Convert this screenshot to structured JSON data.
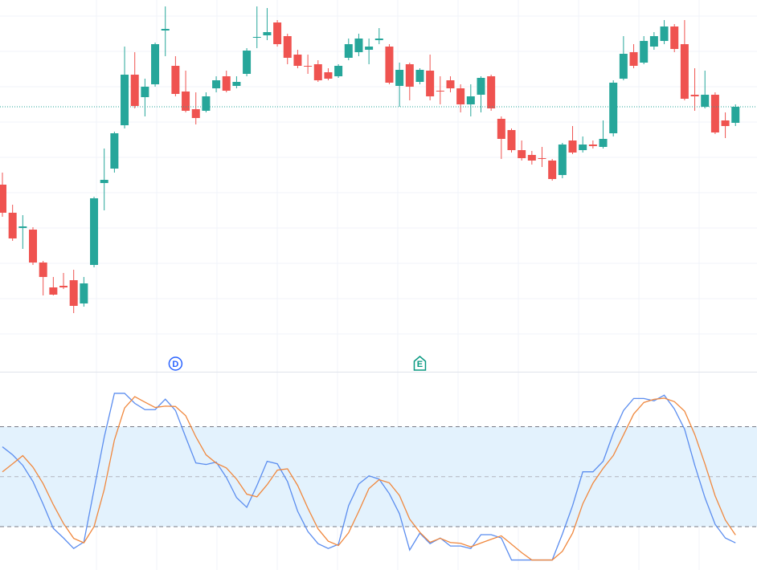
{
  "chart_data": [
    {
      "type": "candlestick",
      "up_color": "#26a69a",
      "down_color": "#ef5350",
      "ylim": [
        0,
        460
      ],
      "last_price_line": true,
      "ohlc": [
        [
          230,
          245,
          190,
          195
        ],
        [
          195,
          205,
          160,
          163
        ],
        [
          176,
          192,
          150,
          178
        ],
        [
          174,
          177,
          130,
          133
        ],
        [
          133,
          135,
          92,
          115
        ],
        [
          102,
          115,
          92,
          93
        ],
        [
          104,
          120,
          100,
          102
        ],
        [
          111,
          124,
          70,
          79
        ],
        [
          82,
          115,
          78,
          107
        ],
        [
          130,
          215,
          127,
          213
        ],
        [
          232,
          275,
          198,
          236
        ],
        [
          250,
          296,
          245,
          294
        ],
        [
          304,
          402,
          300,
          367
        ],
        [
          367,
          395,
          325,
          328
        ],
        [
          339,
          362,
          315,
          352
        ],
        [
          355,
          407,
          352,
          405
        ],
        [
          422,
          452,
          390,
          424
        ],
        [
          378,
          390,
          340,
          343
        ],
        [
          346,
          372,
          320,
          322
        ],
        [
          324,
          345,
          305,
          313
        ],
        [
          322,
          345,
          320,
          340
        ],
        [
          350,
          365,
          345,
          360
        ],
        [
          365,
          372,
          345,
          347
        ],
        [
          353,
          365,
          350,
          358
        ],
        [
          368,
          400,
          365,
          397
        ],
        [
          413,
          452,
          400,
          414
        ],
        [
          416,
          450,
          410,
          420
        ],
        [
          432,
          435,
          402,
          405
        ],
        [
          415,
          418,
          380,
          388
        ],
        [
          392,
          398,
          375,
          378
        ],
        [
          378,
          392,
          368,
          377
        ],
        [
          380,
          385,
          358,
          360
        ],
        [
          370,
          375,
          360,
          362
        ],
        [
          365,
          380,
          363,
          378
        ],
        [
          388,
          412,
          385,
          405
        ],
        [
          395,
          418,
          390,
          412
        ],
        [
          398,
          412,
          380,
          402
        ],
        [
          410,
          425,
          405,
          412
        ],
        [
          402,
          405,
          355,
          357
        ],
        [
          353,
          382,
          327,
          373
        ],
        [
          380,
          382,
          335,
          352
        ],
        [
          358,
          375,
          355,
          373
        ],
        [
          372,
          392,
          335,
          340
        ],
        [
          347,
          365,
          330,
          346
        ],
        [
          360,
          365,
          345,
          350
        ],
        [
          350,
          355,
          320,
          330
        ],
        [
          330,
          355,
          315,
          340
        ],
        [
          342,
          365,
          320,
          363
        ],
        [
          365,
          367,
          322,
          325
        ],
        [
          312,
          315,
          262,
          287
        ],
        [
          298,
          300,
          270,
          273
        ],
        [
          273,
          285,
          260,
          263
        ],
        [
          267,
          272,
          255,
          260
        ],
        [
          263,
          277,
          252,
          262
        ],
        [
          260,
          262,
          235,
          237
        ],
        [
          242,
          282,
          238,
          280
        ],
        [
          285,
          303,
          268,
          270
        ],
        [
          273,
          290,
          270,
          280
        ],
        [
          280,
          285,
          275,
          278
        ],
        [
          277,
          310,
          275,
          287
        ],
        [
          294,
          360,
          290,
          357
        ],
        [
          362,
          415,
          360,
          393
        ],
        [
          395,
          405,
          375,
          378
        ],
        [
          382,
          415,
          380,
          409
        ],
        [
          402,
          420,
          398,
          415
        ],
        [
          409,
          435,
          405,
          427
        ],
        [
          427,
          430,
          395,
          399
        ],
        [
          405,
          435,
          335,
          337
        ],
        [
          342,
          375,
          322,
          340
        ],
        [
          327,
          372,
          325,
          342
        ],
        [
          342,
          345,
          293,
          295
        ],
        [
          310,
          320,
          288,
          303
        ],
        [
          307,
          330,
          303,
          327
        ]
      ],
      "markers": [
        {
          "label": "D",
          "index": 17,
          "color": "#2962ff"
        },
        {
          "label": "E",
          "index": 41,
          "color": "#089981"
        }
      ]
    },
    {
      "type": "line",
      "ylim": [
        -6,
        112
      ],
      "hlines": [
        80,
        50,
        20
      ],
      "band_color": "#e3f2fd",
      "series": [
        {
          "color": "#5b8def",
          "values": [
            67.9,
            63.1,
            56.8,
            47.1,
            33.5,
            19,
            13.2,
            6.9,
            10.8,
            42.3,
            73.7,
            100,
            100,
            94,
            90.2,
            90.2,
            96.5,
            89.7,
            73.7,
            58.2,
            57.3,
            58.7,
            49.5,
            37.4,
            31.6,
            44.7,
            59.2,
            57.7,
            47.1,
            29.2,
            17.1,
            9.8,
            6.9,
            9.4,
            32.6,
            45.6,
            50.5,
            48.5,
            39.8,
            27.7,
            6,
            16.1,
            9.8,
            13.2,
            8.4,
            8.4,
            6.9,
            15.2,
            15.2,
            13.2,
            0,
            0,
            0,
            0,
            0,
            15.6,
            32.6,
            52.9,
            52.9,
            59.2,
            76.1,
            89.7,
            96.9,
            96.9,
            95.5,
            98.9,
            90.6,
            78.5,
            56.8,
            37.4,
            21.4,
            13.2,
            10.3
          ]
        },
        {
          "color": "#f0883e",
          "values": [
            52.9,
            57.7,
            62.6,
            55.7,
            45.8,
            33.2,
            21.9,
            13,
            10.3,
            20,
            42.3,
            72,
            91.2,
            98,
            94.7,
            91.5,
            92.3,
            92.1,
            86.6,
            73.9,
            63.1,
            58.1,
            55.2,
            48.5,
            39.5,
            37.9,
            45.2,
            53.9,
            54.7,
            44.7,
            31.1,
            18.7,
            11.3,
            8.7,
            16.3,
            29.2,
            42.9,
            48.2,
            46.3,
            38.7,
            24.5,
            16.6,
            10.6,
            13,
            10.5,
            10,
            7.9,
            10.2,
            12.4,
            14.5,
            9.5,
            4.4,
            0,
            0,
            0,
            5.2,
            16.1,
            33.7,
            46.1,
            55,
            62.7,
            75,
            87.6,
            94.5,
            96.4,
            97.1,
            95,
            89.3,
            75.3,
            57.6,
            38.5,
            24,
            15
          ]
        }
      ]
    }
  ]
}
